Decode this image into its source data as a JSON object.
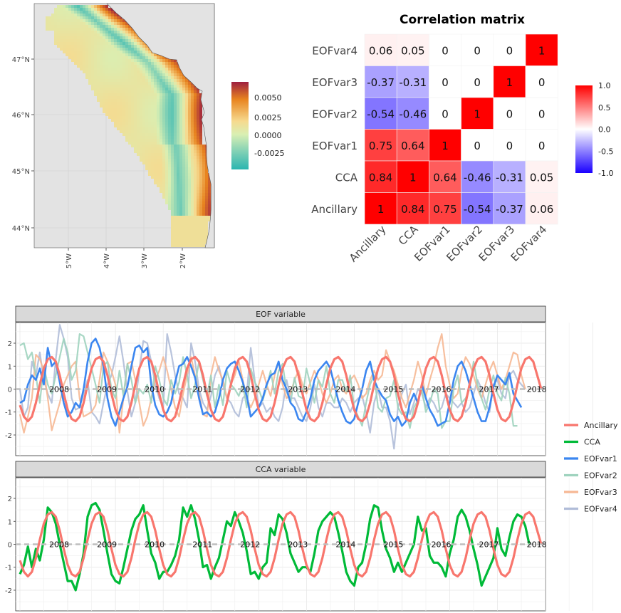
{
  "map": {
    "lat_ticks": [
      "47°N",
      "46°N",
      "45°N",
      "44°N"
    ],
    "lon_ticks": [
      "5°W",
      "4°W",
      "3°W",
      "2°W"
    ],
    "colorbar": {
      "ticks": [
        "0.0050",
        "0.0025",
        "0.0000",
        "-0.0025"
      ],
      "colors": [
        "#9e1f3f",
        "#e8841f",
        "#f6da8f",
        "#d9efb3",
        "#7fd0b5",
        "#2bb5b0"
      ]
    },
    "colors": {
      "land": "#e3e3e3",
      "mask": "#ffffff"
    }
  },
  "chart_data": [
    {
      "type": "heatmap",
      "title": "Correlation matrix",
      "rows": [
        "EOFvar4",
        "EOFvar3",
        "EOFvar2",
        "EOFvar1",
        "CCA",
        "Ancillary"
      ],
      "columns": [
        "Ancillary",
        "CCA",
        "EOFvar1",
        "EOFvar2",
        "EOFvar3",
        "EOFvar4"
      ],
      "values": [
        [
          0.06,
          0.05,
          0,
          0,
          0,
          1
        ],
        [
          -0.37,
          -0.31,
          0,
          0,
          1,
          0
        ],
        [
          -0.54,
          -0.46,
          0,
          1,
          0,
          0
        ],
        [
          0.75,
          0.64,
          1,
          0,
          0,
          0
        ],
        [
          0.84,
          1,
          0.64,
          -0.46,
          -0.31,
          0.05
        ],
        [
          1,
          0.84,
          0.75,
          -0.54,
          -0.37,
          0.06
        ]
      ],
      "labels": [
        [
          "0.06",
          "0.05",
          "0",
          "0",
          "0",
          "1"
        ],
        [
          "-0.37",
          "-0.31",
          "0",
          "0",
          "1",
          "0"
        ],
        [
          "-0.54",
          "-0.46",
          "0",
          "1",
          "0",
          "0"
        ],
        [
          "0.75",
          "0.64",
          "1",
          "0",
          "0",
          "0"
        ],
        [
          "0.84",
          "1",
          "0.64",
          "-0.46",
          "-0.31",
          "0.05"
        ],
        [
          "1",
          "0.84",
          "0.75",
          "-0.54",
          "-0.37",
          "0.06"
        ]
      ],
      "legend_ticks": [
        "1.0",
        "0.5",
        "0.0",
        "-0.5",
        "-1.0"
      ],
      "value_range": [
        -1,
        1
      ],
      "colors": {
        "low": "#1a00ff",
        "mid": "#ffffff",
        "high": "#ff0000"
      },
      "legend": "right"
    },
    {
      "type": "line",
      "panels": [
        "EOF variable",
        "CCA variable"
      ],
      "x_start": "2007-01",
      "x_end": "2018-12",
      "year_labels": [
        "2008",
        "2009",
        "2010",
        "2011",
        "2012",
        "2013",
        "2014",
        "2015",
        "2016",
        "2017",
        "2018"
      ],
      "y_ticks": [
        "2",
        "1",
        "0",
        "-1",
        "-2"
      ],
      "ylim": [
        -2.9,
        2.9
      ],
      "grid": true,
      "legend": "right",
      "series": [
        {
          "name": "Ancillary",
          "color": "#f8766d"
        },
        {
          "name": "CCA",
          "color": "#00ba38"
        },
        {
          "name": "EOFvar1",
          "color": "#3b86f0"
        },
        {
          "name": "EOFvar2",
          "color": "#9fd3be"
        },
        {
          "name": "EOFvar3",
          "color": "#f6b894"
        },
        {
          "name": "EOFvar4",
          "color": "#b0bcd8"
        }
      ],
      "ancillary": [
        -0.7,
        -1.2,
        -1.4,
        -1.2,
        -0.6,
        0.2,
        0.9,
        1.3,
        1.4,
        1.2,
        0.6,
        -0.2,
        -0.9,
        -1.3,
        -1.4,
        -1.2,
        -0.6,
        0.2,
        0.9,
        1.3,
        1.4,
        1.2,
        0.6,
        -0.2,
        -0.9,
        -1.3,
        -1.4,
        -1.2,
        -0.6,
        0.2,
        0.9,
        1.3,
        1.4,
        1.2,
        0.6,
        -0.2,
        -0.9,
        -1.3,
        -1.4,
        -1.2,
        -0.6,
        0.2,
        0.9,
        1.3,
        1.4,
        1.2,
        0.6,
        -0.2,
        -0.9,
        -1.3,
        -1.4,
        -1.2,
        -0.6,
        0.2,
        0.9,
        1.3,
        1.4,
        1.2,
        0.6,
        -0.2,
        -0.9,
        -1.3,
        -1.4,
        -1.2,
        -0.6,
        0.2,
        0.9,
        1.3,
        1.4,
        1.2,
        0.6,
        -0.2,
        -0.9,
        -1.3,
        -1.4,
        -1.2,
        -0.6,
        0.2,
        0.9,
        1.3,
        1.4,
        1.2,
        0.6,
        -0.2,
        -0.9,
        -1.3,
        -1.4,
        -1.2,
        -0.6,
        0.2,
        0.9,
        1.3,
        1.4,
        1.2,
        0.6,
        -0.2,
        -0.9,
        -1.3,
        -1.4,
        -1.2,
        -0.6,
        0.2,
        0.9,
        1.3,
        1.4,
        1.2,
        0.6,
        -0.2,
        -0.9,
        -1.3,
        -1.4,
        -1.2,
        -0.6,
        0.2,
        0.9,
        1.3,
        1.4,
        1.2,
        0.6,
        -0.2,
        -0.9,
        -1.3,
        -1.4,
        -1.2,
        -0.6,
        0.2,
        0.9,
        1.3,
        1.4,
        1.2,
        0.6,
        0.0
      ],
      "cca": [
        -1.3,
        -0.9,
        -0.1,
        -1.0,
        -0.2,
        -0.7,
        0.2,
        1.6,
        1.4,
        0.9,
        0.0,
        -0.8,
        -1.6,
        -1.6,
        -2.0,
        -1.3,
        -0.4,
        1.2,
        1.7,
        1.8,
        1.5,
        0.6,
        -0.4,
        -1.3,
        -1.6,
        -1.7,
        -1.0,
        -0.2,
        0.6,
        1.1,
        1.3,
        1.7,
        0.6,
        -0.4,
        -0.8,
        -1.5,
        -1.2,
        -1.2,
        -0.9,
        -0.5,
        0.2,
        1.6,
        1.2,
        1.7,
        1.1,
        0.2,
        -1.0,
        -0.9,
        -1.5,
        -1.0,
        -0.6,
        0.2,
        1.0,
        0.8,
        1.4,
        1.0,
        0.5,
        -0.3,
        -1.3,
        -1.2,
        -1.5,
        -1.0,
        -0.8,
        0.7,
        0.4,
        1.3,
        1.1,
        0.5,
        -0.4,
        -0.8,
        -1.2,
        -1.0,
        -1.0,
        -1.2,
        -0.4,
        0.6,
        1.0,
        1.2,
        1.4,
        1.2,
        0.5,
        -0.3,
        -1.2,
        -1.6,
        -1.8,
        -1.0,
        -0.8,
        0.0,
        1.1,
        1.7,
        1.6,
        0.6,
        -0.2,
        -0.6,
        -1.2,
        -0.8,
        -1.2,
        -0.8,
        -0.4,
        0.0,
        1.2,
        0.6,
        0.7,
        -0.5,
        -0.8,
        -0.8,
        -1.0,
        -1.4,
        -0.4,
        0.2,
        1.2,
        1.5,
        1.2,
        0.6,
        -0.2,
        -0.9,
        -1.8,
        -1.4,
        -1.0,
        -0.6,
        0.7,
        -0.2,
        -0.5,
        0.3,
        1.0,
        1.3,
        1.2,
        0.8,
        0.0
      ],
      "eofvar1": [
        -0.6,
        -0.5,
        0.2,
        0.6,
        0.4,
        0.9,
        0.2,
        1.8,
        1.0,
        1.2,
        0.3,
        -0.6,
        -1.2,
        -1.0,
        -0.6,
        -0.8,
        0.0,
        1.2,
        2.0,
        2.2,
        1.8,
        1.0,
        -0.4,
        -1.2,
        -1.6,
        -1.0,
        -0.4,
        0.1,
        1.0,
        1.8,
        1.9,
        1.6,
        1.8,
        0.2,
        -0.7,
        -1.1,
        -1.2,
        -1.0,
        -0.6,
        0.3,
        1.0,
        1.1,
        1.4,
        1.0,
        0.5,
        -0.4,
        -1.1,
        -1.0,
        -1.2,
        -1.0,
        -0.4,
        0.4,
        0.9,
        1.1,
        1.2,
        0.8,
        0.3,
        -0.3,
        -1.2,
        -1.0,
        -0.8,
        -0.4,
        0.2,
        0.6,
        0.7,
        1.2,
        0.4,
        0.0,
        -0.6,
        -0.8,
        -1.3,
        -1.4,
        -1.0,
        -0.4,
        0.4,
        0.8,
        1.0,
        1.2,
        0.9,
        0.2,
        -0.5,
        -1.0,
        -1.4,
        -1.5,
        -1.3,
        -0.6,
        0.0,
        0.8,
        1.2,
        0.4,
        0.0,
        -0.3,
        -0.5,
        -1.1,
        -1.4,
        -1.2,
        -1.6,
        -1.4,
        -0.6,
        -0.2,
        -0.6,
        0.2,
        -0.4,
        -0.9,
        -1.2,
        -1.6,
        -1.5,
        -1.4,
        -0.6,
        0.4,
        1.0,
        1.2,
        0.8,
        0.2,
        -0.4,
        -1.0,
        -1.4,
        -1.4,
        -0.8,
        0.1,
        0.6,
        0.4,
        0.2,
        0.7,
        -0.2,
        -0.5,
        -0.8
      ],
      "eofvar2": [
        1.9,
        2.0,
        1.3,
        1.6,
        0.6,
        -0.6,
        1.0,
        0.2,
        -0.2,
        0.6,
        1.4,
        2.2,
        1.6,
        0.4,
        0.8,
        2.4,
        2.3,
        1.6,
        0.9,
        0.2,
        -0.6,
        1.0,
        1.2,
        0.0,
        -0.4,
        0.8,
        -0.3,
        1.1,
        0.4,
        -0.6,
        0.0,
        -0.2,
        0.2,
        -0.6,
        1.0,
        0.4,
        -0.4,
        -0.7,
        0.4,
        -0.2,
        0.3,
        1.4,
        0.6,
        -0.4,
        0.2,
        1.2,
        0.4,
        -0.3,
        0.6,
        -0.8,
        0.2,
        -0.7,
        0.8,
        0.2,
        0.0,
        -0.3,
        0.2,
        -0.8,
        0.9,
        0.3,
        0.0,
        -0.5,
        0.1,
        0.8,
        -0.2,
        0.8,
        1.1,
        -0.1,
        -0.6,
        0.5,
        -0.3,
        -0.4,
        0.9,
        0.2,
        -0.6,
        0.4,
        0.1,
        1.0,
        -0.2,
        -0.6,
        0.4,
        0.4,
        -0.1,
        0.6,
        -0.8,
        -1.2,
        -1.6,
        -0.6,
        0.2,
        0.6,
        -0.8,
        -1.0,
        -0.4,
        -0.3,
        0.4,
        -0.8,
        -1.1,
        -1.0,
        -1.7,
        -0.8,
        -0.5,
        0.0,
        -1.0,
        -0.6,
        0.0,
        -0.2,
        -1.7,
        -1.4,
        -1.4,
        0.0,
        0.6,
        -0.6,
        -0.4,
        0.0,
        1.2,
        0.2,
        -0.4,
        -0.9,
        0.0,
        0.6,
        -0.2,
        -0.5,
        0.5,
        -0.2,
        -1.6,
        -1.6
      ],
      "eofvar3": [
        -1.1,
        -1.9,
        -1.2,
        -0.4,
        1.5,
        1.3,
        0.8,
        -0.4,
        -1.8,
        -1.2,
        -0.6,
        0.2,
        0.6,
        1.0,
        1.2,
        -0.4,
        -1.2,
        -1.1,
        -1.0,
        -0.7,
        0.4,
        1.6,
        1.2,
        0.8,
        0.2,
        -1.9,
        -0.4,
        1.1,
        1.2,
        0.4,
        -0.6,
        -1.6,
        -1.2,
        -0.4,
        0.4,
        0.8,
        1.4,
        0.8,
        0.0,
        -0.8,
        -1.2,
        -0.2,
        0.6,
        1.4,
        0.6,
        -0.2,
        -1.1,
        -1.2,
        0.6,
        1.4,
        0.8,
        0.4,
        -0.4,
        0.2,
        0.6,
        1.2,
        0.4,
        -0.4,
        -0.8,
        -0.4,
        0.2,
        0.8,
        0.2,
        -0.3,
        0.6,
        1.2,
        0.2,
        -0.4,
        -0.2,
        0.4,
        0.8,
        0.2,
        -0.2,
        0.3,
        0.8,
        0.4,
        -0.2,
        -0.6,
        -0.2,
        0.4,
        0.6,
        0.0,
        -0.2,
        0.4,
        0.6,
        0.2,
        -0.4,
        -0.2,
        0.4,
        0.8,
        0.4,
        0.6,
        1.7,
        1.2,
        0.8,
        0.2,
        -0.4,
        -0.8,
        -0.2,
        0.4,
        1.2,
        0.6,
        -0.3,
        0.4,
        1.0,
        1.8,
        2.4,
        1.0,
        0.2,
        -0.4,
        -0.2,
        0.8,
        1.4,
        1.1,
        0.6,
        0.0,
        -0.4,
        0.2,
        0.8,
        1.2,
        0.6,
        0.0,
        0.4,
        1.0,
        1.6,
        1.5,
        0.6,
        0.0
      ],
      "eofvar4": [
        0.0,
        -1.2,
        -0.8,
        1.2,
        0.6,
        1.6,
        0.4,
        -0.2,
        -0.6,
        1.3,
        2.8,
        2.2,
        1.4,
        -0.4,
        -0.9,
        -0.8,
        -0.2,
        0.4,
        -1.0,
        -1.2,
        -1.5,
        -0.6,
        0.2,
        0.6,
        1.4,
        2.3,
        1.2,
        -0.1,
        -1.2,
        -0.6,
        0.8,
        2.1,
        2.0,
        1.2,
        0.2,
        -0.4,
        -0.8,
        2.4,
        1.6,
        0.6,
        -0.2,
        -0.4,
        -0.8,
        2.0,
        1.2,
        0.0,
        -0.6,
        -0.9,
        -0.3,
        0.6,
        1.0,
        0.2,
        -0.4,
        -0.6,
        -1.0,
        -1.2,
        -0.4,
        -0.2,
        1.8,
        0.4,
        -0.8,
        -0.6,
        -1.0,
        -0.8,
        -1.2,
        -1.4,
        -0.8,
        0.4,
        -0.4,
        -0.4,
        -0.8,
        -1.2,
        -1.4,
        -0.8,
        0.2,
        -0.8,
        -1.2,
        -0.6,
        -0.6,
        -0.8,
        -0.8,
        -0.4,
        -0.6,
        -1.0,
        -0.6,
        -0.4,
        -0.3,
        -1.0,
        -1.9,
        -0.6,
        0.0,
        -0.8,
        -0.8,
        -1.4,
        -2.6,
        -0.8,
        -0.2,
        0.2,
        -1.1,
        -0.6,
        0.0,
        -0.2,
        -0.8,
        -0.4,
        -0.6,
        -1.0,
        -0.8,
        -0.2,
        -0.4,
        -0.6,
        -0.8,
        -0.6,
        -1.0,
        -0.8,
        -0.2,
        0.4,
        0.0,
        -0.6,
        -1.0,
        0.2,
        0.4,
        -0.2,
        -0.4,
        0.6,
        0.8,
        0.4,
        0.2,
        0.0
      ]
    }
  ]
}
